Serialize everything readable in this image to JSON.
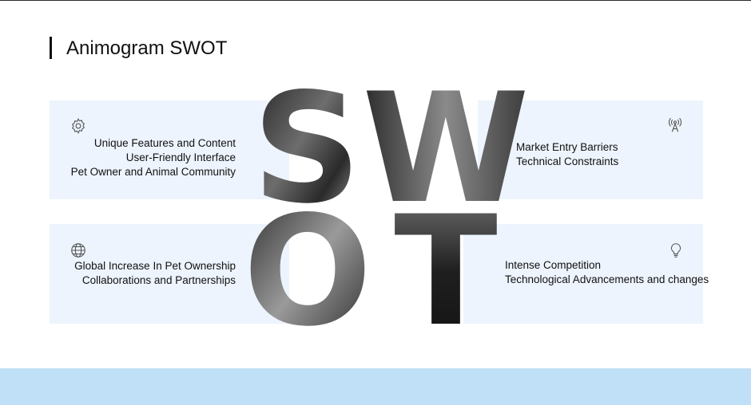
{
  "title": "Animogram SWOT",
  "letters": {
    "s": "S",
    "w": "W",
    "o": "O",
    "t": "T"
  },
  "strengths": {
    "icon": "gear-icon",
    "items": [
      "Unique Features and Content",
      "User-Friendly Interface",
      "Pet Owner and Animal Community"
    ]
  },
  "weaknesses": {
    "icon": "antenna-icon",
    "items": [
      "Market Entry Barriers",
      "Technical Constraints"
    ]
  },
  "opportunities": {
    "icon": "globe-icon",
    "items": [
      "Global Increase In Pet Ownership",
      "Collaborations and Partnerships"
    ]
  },
  "threats": {
    "icon": "lightbulb-icon",
    "items": [
      "Intense Competition",
      "Technological Advancements and changes"
    ]
  },
  "colors": {
    "panel": "#edf4fd",
    "footer": "#bfe0f7",
    "text": "#111111"
  }
}
